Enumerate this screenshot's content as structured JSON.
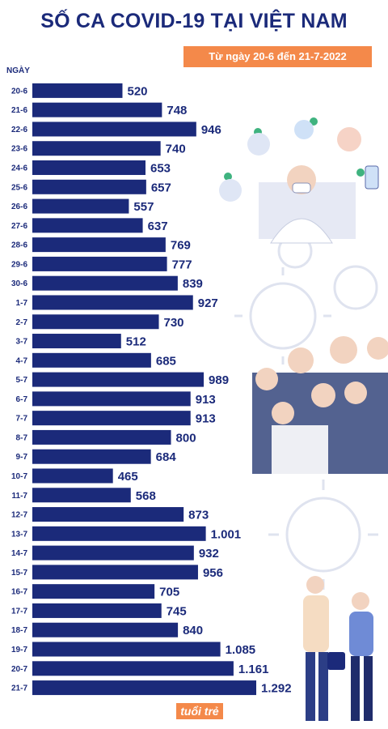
{
  "header": {
    "title": "SỐ CA COVID-19 TẠI VIỆT NAM",
    "subtitle": "Từ ngày 20-6 đến 21-7-2022"
  },
  "colors": {
    "bar": "#1b2a7a",
    "accent": "#f4894a",
    "text": "#1b2a7a"
  },
  "logo_text": "tuổi trẻ",
  "chart_data": {
    "type": "bar",
    "orientation": "horizontal",
    "y_axis_unit_label": "NGÀY",
    "categories": [
      "20-6",
      "21-6",
      "22-6",
      "23-6",
      "24-6",
      "25-6",
      "26-6",
      "27-6",
      "28-6",
      "29-6",
      "30-6",
      "1-7",
      "2-7",
      "3-7",
      "4-7",
      "5-7",
      "6-7",
      "7-7",
      "8-7",
      "9-7",
      "10-7",
      "11-7",
      "12-7",
      "13-7",
      "14-7",
      "15-7",
      "16-7",
      "17-7",
      "18-7",
      "19-7",
      "20-7",
      "21-7"
    ],
    "values": [
      520,
      748,
      946,
      740,
      653,
      657,
      557,
      637,
      769,
      777,
      839,
      927,
      730,
      512,
      685,
      989,
      913,
      913,
      800,
      684,
      465,
      568,
      873,
      1001,
      932,
      956,
      705,
      745,
      840,
      1085,
      1161,
      1292
    ],
    "value_labels": [
      "520",
      "748",
      "946",
      "740",
      "653",
      "657",
      "557",
      "637",
      "769",
      "777",
      "839",
      "927",
      "730",
      "512",
      "685",
      "989",
      "913",
      "913",
      "800",
      "684",
      "465",
      "568",
      "873",
      "1.001",
      "932",
      "956",
      "705",
      "745",
      "840",
      "1.085",
      "1.161",
      "1.292"
    ],
    "grid": false,
    "legend": "none"
  }
}
